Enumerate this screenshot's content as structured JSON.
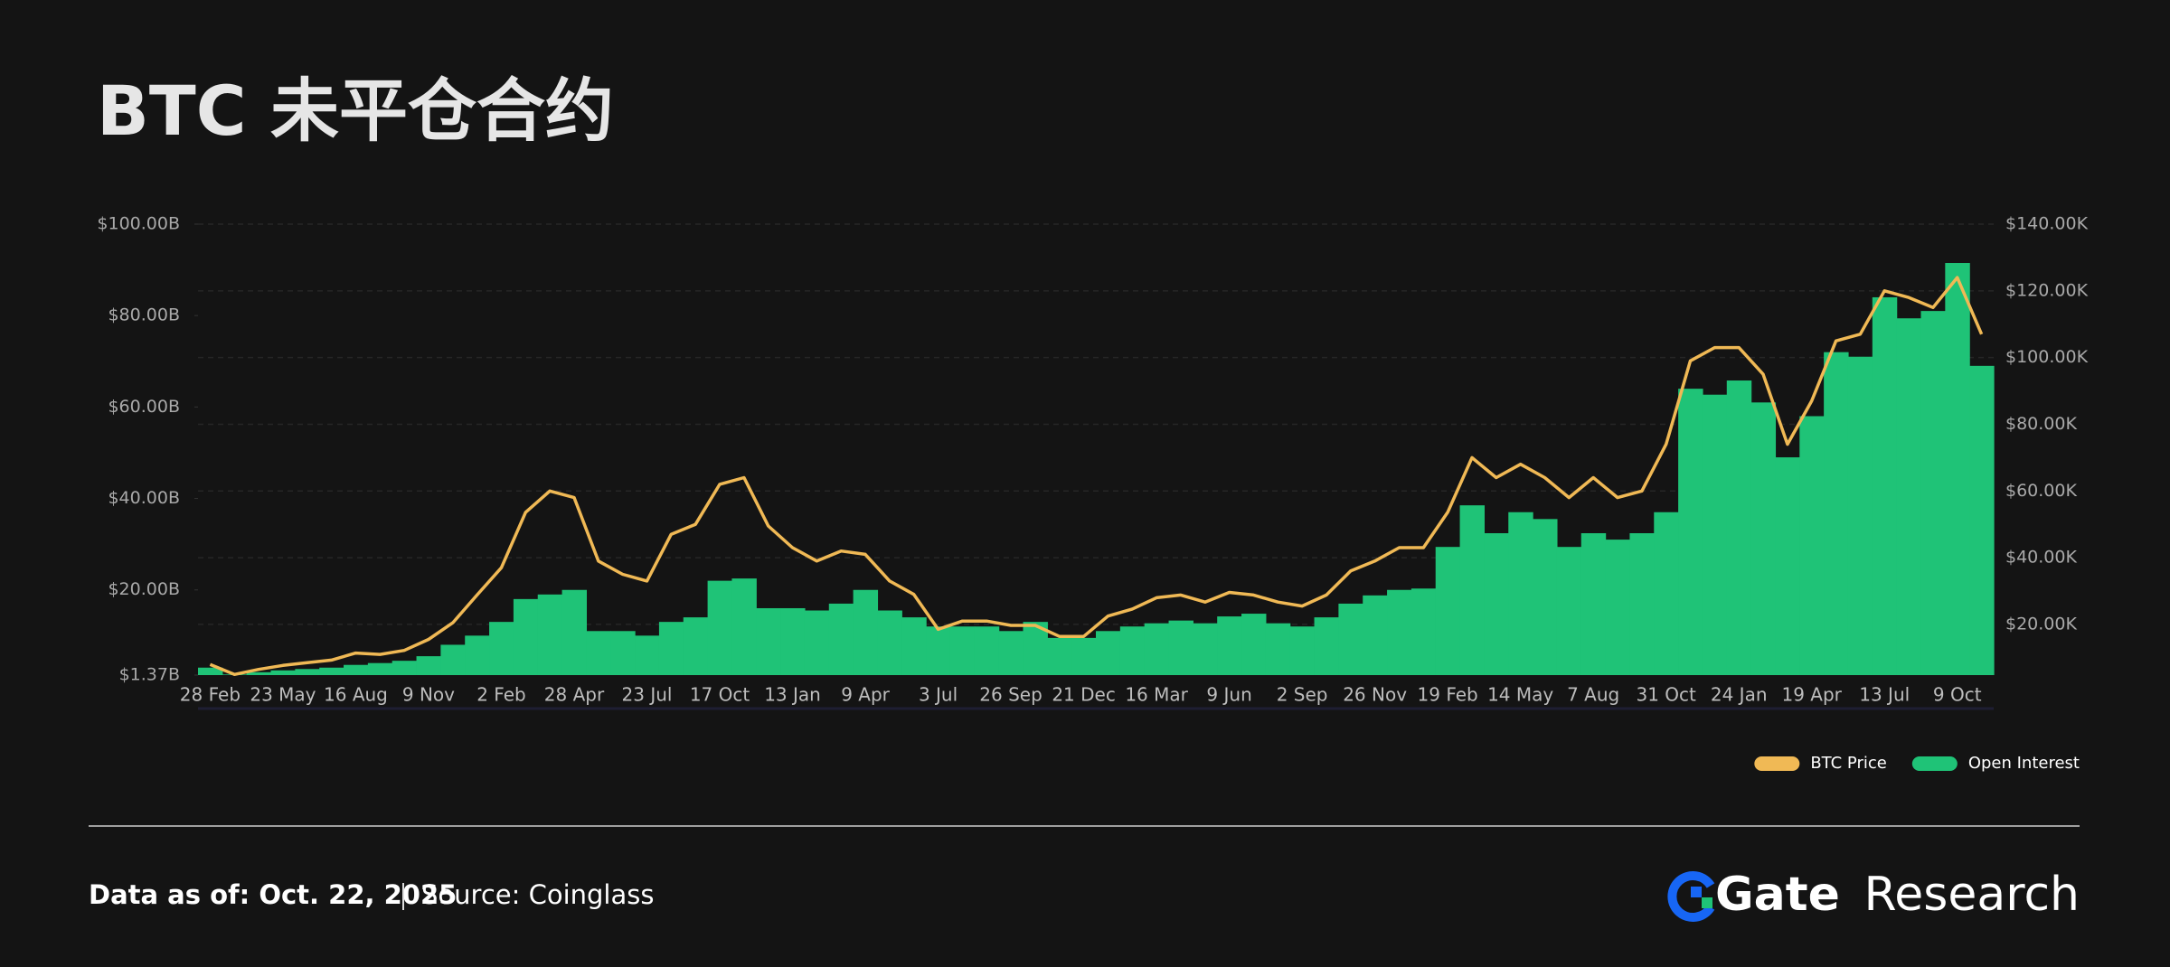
{
  "chart_data": {
    "type": "bar-line",
    "title": "BTC 未平仓合约",
    "categories": [
      "28 Feb",
      null,
      null,
      "23 May",
      null,
      null,
      "16 Aug",
      null,
      null,
      "9 Nov",
      null,
      null,
      "2 Feb",
      null,
      null,
      "28 Apr",
      null,
      null,
      "23 Jul",
      null,
      null,
      "17 Oct",
      null,
      null,
      "13 Jan",
      null,
      null,
      "9 Apr",
      null,
      null,
      "3 Jul",
      null,
      null,
      "26 Sep",
      null,
      null,
      "21 Dec",
      null,
      null,
      "16 Mar",
      null,
      null,
      "9 Jun",
      null,
      null,
      "2 Sep",
      null,
      null,
      "26 Nov",
      null,
      null,
      "19 Feb",
      null,
      null,
      "14 May",
      null,
      null,
      "7 Aug",
      null,
      null,
      "31 Oct",
      null,
      null,
      "24 Jan",
      null,
      null,
      "19 Apr",
      null,
      null,
      "13 Jul",
      null,
      null,
      "9 Oct",
      null
    ],
    "series": [
      {
        "name": "BTC Price",
        "color": "#f0b955",
        "type": "line",
        "axis": "y2",
        "values": [
          8000,
          5000,
          6500,
          7700,
          8500,
          9300,
          11400,
          11000,
          12200,
          15500,
          20500,
          28800,
          37000,
          53600,
          60000,
          58000,
          39000,
          35000,
          33000,
          47000,
          50000,
          62000,
          64000,
          49500,
          43000,
          39000,
          42000,
          41000,
          33000,
          29000,
          18500,
          21000,
          21000,
          19700,
          19700,
          16400,
          16400,
          22500,
          24600,
          28000,
          28800,
          26700,
          29600,
          28800,
          26700,
          25500,
          28800,
          36000,
          39000,
          43000,
          43000,
          53600,
          70000,
          64000,
          68000,
          64000,
          58000,
          64000,
          58000,
          60000,
          74000,
          99000,
          103000,
          103000,
          95000,
          74000,
          87000,
          105000,
          107000,
          120000,
          118000,
          115000,
          124000,
          107000
        ]
      },
      {
        "name": "Open Interest",
        "color": "#1fc377",
        "type": "bar",
        "axis": "y",
        "values": [
          3,
          1.5,
          2,
          2.4,
          2.7,
          3,
          3.6,
          4,
          4.5,
          5.5,
          8,
          10,
          13,
          18,
          19,
          20,
          11,
          11,
          10,
          13,
          14,
          22,
          22.5,
          16,
          16,
          15.5,
          17,
          20,
          15.5,
          14,
          12,
          12,
          12,
          11,
          13,
          9.5,
          9.5,
          11,
          12,
          12.7,
          13.3,
          12.7,
          14.2,
          14.8,
          12.7,
          12,
          14,
          17,
          18.8,
          20,
          20.3,
          29.4,
          38.5,
          32.4,
          37,
          35.5,
          29.4,
          32.4,
          31,
          32.4,
          37,
          64,
          62.7,
          65.8,
          61,
          49,
          58,
          72,
          71,
          84,
          79.4,
          81,
          91.5,
          69
        ]
      }
    ],
    "ylim": [
      1.37,
      100
    ],
    "yticks": [
      {
        "value": 1.37,
        "label": "$1.37B"
      },
      {
        "value": 20,
        "label": "$20.00B"
      },
      {
        "value": 40,
        "label": "$40.00B"
      },
      {
        "value": 60,
        "label": "$60.00B"
      },
      {
        "value": 80,
        "label": "$80.00B"
      },
      {
        "value": 100,
        "label": "$100.00B"
      }
    ],
    "y2lim": [
      4800,
      140000
    ],
    "y2ticks": [
      {
        "value": 20000,
        "label": "$20.00K"
      },
      {
        "value": 40000,
        "label": "$40.00K"
      },
      {
        "value": 60000,
        "label": "$60.00K"
      },
      {
        "value": 80000,
        "label": "$80.00K"
      },
      {
        "value": 100000,
        "label": "$100.00K"
      },
      {
        "value": 120000,
        "label": "$120.00K"
      },
      {
        "value": 140000,
        "label": "$140.00K"
      }
    ],
    "grid": true,
    "legend": "bottom-right"
  },
  "footer": {
    "date": "Data as of: Oct. 22, 2025",
    "source": "Source: Coinglass"
  },
  "brand": {
    "name": "Gate",
    "suffix": "Research"
  }
}
